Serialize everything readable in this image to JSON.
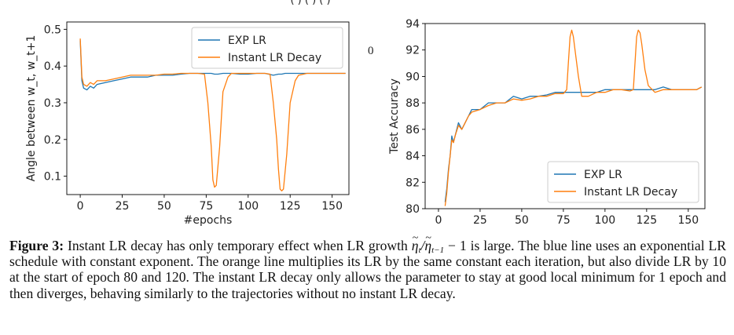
{
  "top_cut_text": "( ) ( ) (  )",
  "stray_mark": "0",
  "caption": {
    "label": "Figure 3:",
    "part1": "Instant LR decay has only temporary effect when LR growth",
    "math_eta": "η",
    "math_sub_t": "t",
    "math_sub_tm1": "t−1",
    "math_tail": "− 1",
    "part2": "is large. The blue line uses an exponential LR schedule with constant exponent. The orange line multiplies its LR by the same constant each iteration, but also divide LR by 10 at the start of epoch 80 and 120. The instant LR decay only allows the parameter to stay at good local minimum for 1 epoch and then diverges, behaving similarly to the trajectories without no instant LR decay."
  },
  "colors": {
    "exp": "#1f77b4",
    "instant": "#ff7f0e"
  },
  "chart_data": [
    {
      "type": "line",
      "xlabel": "#epochs",
      "ylabel": "Angle between w_t, w_t+1",
      "xlim": [
        -8,
        160
      ],
      "ylim": [
        0.05,
        0.52
      ],
      "xticks": [
        0,
        25,
        50,
        75,
        100,
        125,
        150
      ],
      "yticks": [
        0.1,
        0.2,
        0.3,
        0.4,
        0.5
      ],
      "legend_position": "top-right",
      "series": [
        {
          "name": "EXP LR",
          "color": "#1f77b4",
          "x": [
            0,
            1,
            2,
            4,
            6,
            8,
            10,
            15,
            20,
            25,
            30,
            35,
            40,
            45,
            50,
            55,
            60,
            65,
            70,
            75,
            78,
            80,
            82,
            85,
            90,
            95,
            100,
            105,
            110,
            115,
            118,
            120,
            122,
            125,
            130,
            135,
            140,
            145,
            150,
            155,
            158
          ],
          "y": [
            0.47,
            0.36,
            0.34,
            0.335,
            0.345,
            0.34,
            0.35,
            0.355,
            0.36,
            0.365,
            0.37,
            0.37,
            0.37,
            0.375,
            0.375,
            0.375,
            0.378,
            0.38,
            0.38,
            0.38,
            0.38,
            0.378,
            0.378,
            0.38,
            0.38,
            0.378,
            0.378,
            0.38,
            0.38,
            0.375,
            0.378,
            0.378,
            0.38,
            0.38,
            0.38,
            0.38,
            0.38,
            0.38,
            0.38,
            0.38,
            0.38
          ]
        },
        {
          "name": "Instant LR Decay",
          "color": "#ff7f0e",
          "x": [
            0,
            1,
            2,
            4,
            6,
            8,
            10,
            15,
            20,
            25,
            30,
            35,
            40,
            45,
            50,
            55,
            60,
            65,
            70,
            74,
            76,
            78,
            79,
            80,
            81,
            83,
            85,
            88,
            90,
            95,
            100,
            105,
            110,
            113,
            115,
            117,
            118,
            119,
            120,
            121,
            123,
            125,
            128,
            130,
            135,
            140,
            145,
            150,
            155,
            158
          ],
          "y": [
            0.475,
            0.37,
            0.35,
            0.345,
            0.355,
            0.35,
            0.36,
            0.36,
            0.365,
            0.37,
            0.375,
            0.375,
            0.375,
            0.375,
            0.378,
            0.378,
            0.38,
            0.38,
            0.38,
            0.378,
            0.3,
            0.18,
            0.09,
            0.07,
            0.075,
            0.18,
            0.33,
            0.37,
            0.38,
            0.38,
            0.38,
            0.38,
            0.38,
            0.378,
            0.3,
            0.2,
            0.12,
            0.065,
            0.06,
            0.065,
            0.16,
            0.3,
            0.36,
            0.375,
            0.38,
            0.38,
            0.38,
            0.38,
            0.38,
            0.38
          ]
        }
      ]
    },
    {
      "type": "line",
      "xlabel": "",
      "ylabel": "Test Accuracy",
      "xlim": [
        -8,
        160
      ],
      "ylim": [
        80,
        94
      ],
      "xticks": [
        0,
        25,
        50,
        75,
        100,
        125,
        150
      ],
      "yticks": [
        80,
        82,
        84,
        86,
        88,
        90,
        92,
        94
      ],
      "legend_position": "bottom-right",
      "series": [
        {
          "name": "EXP LR",
          "color": "#1f77b4",
          "x": [
            4,
            5,
            6,
            7,
            8,
            9,
            10,
            12,
            14,
            16,
            18,
            20,
            25,
            30,
            35,
            40,
            45,
            50,
            55,
            60,
            65,
            70,
            75,
            80,
            85,
            90,
            95,
            100,
            105,
            110,
            115,
            120,
            125,
            130,
            135,
            140,
            145,
            150,
            155,
            158
          ],
          "y": [
            80.5,
            81.5,
            83,
            84,
            85.5,
            85,
            85.5,
            86.5,
            86,
            86.5,
            87,
            87.5,
            87.5,
            88,
            88,
            88,
            88.5,
            88.3,
            88.5,
            88.5,
            88.6,
            88.8,
            88.8,
            88.8,
            88.8,
            88.8,
            88.8,
            89,
            89,
            89,
            89,
            89,
            89,
            89,
            89.2,
            89,
            89,
            89,
            89,
            89.2
          ]
        },
        {
          "name": "Instant LR Decay",
          "color": "#ff7f0e",
          "x": [
            4,
            5,
            6,
            7,
            8,
            9,
            10,
            12,
            14,
            16,
            18,
            20,
            25,
            30,
            35,
            40,
            45,
            50,
            55,
            60,
            65,
            70,
            75,
            77,
            78,
            79,
            80,
            81,
            82,
            84,
            86,
            90,
            95,
            100,
            105,
            110,
            115,
            117,
            118,
            119,
            120,
            121,
            122,
            124,
            126,
            130,
            135,
            140,
            145,
            150,
            155,
            158
          ],
          "y": [
            80.2,
            81.2,
            82.8,
            84,
            85.2,
            85,
            85.5,
            86.3,
            86,
            86.5,
            87,
            87.3,
            87.5,
            87.8,
            88,
            88,
            88.3,
            88.2,
            88.3,
            88.5,
            88.5,
            88.7,
            88.7,
            89,
            91,
            93,
            93.5,
            93,
            92,
            90,
            88.5,
            88.5,
            88.8,
            88.8,
            89,
            89,
            88.9,
            89,
            91,
            93,
            93.5,
            93.3,
            92.5,
            90.5,
            89.3,
            88.8,
            89,
            89,
            89,
            89,
            89,
            89.2
          ]
        }
      ]
    }
  ]
}
